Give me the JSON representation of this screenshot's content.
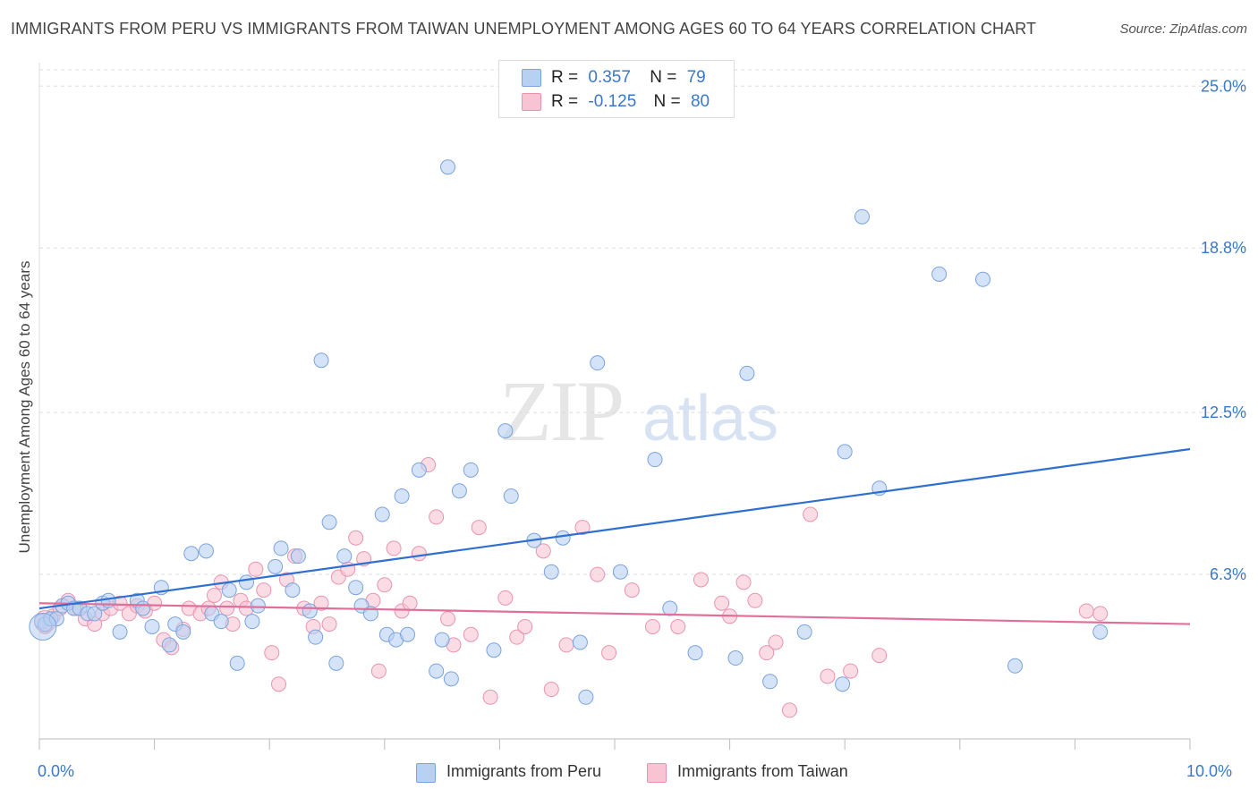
{
  "header": {
    "title": "IMMIGRANTS FROM PERU VS IMMIGRANTS FROM TAIWAN UNEMPLOYMENT AMONG AGES 60 TO 64 YEARS CORRELATION CHART",
    "source": "Source: ZipAtlas.com"
  },
  "legend": {
    "peru": {
      "r_label": "R =",
      "r_value": "0.357",
      "n_label": "N =",
      "n_value": "79",
      "name": "Immigrants from Peru"
    },
    "taiwan": {
      "r_label": "R =",
      "r_value": "-0.125",
      "n_label": "N =",
      "n_value": "80",
      "name": "Immigrants from Taiwan"
    }
  },
  "colors": {
    "peru_fill": "#b8d0f2",
    "peru_stroke": "#7aa3dd",
    "peru_line": "#2f6fcf",
    "taiwan_fill": "#f8c4d4",
    "taiwan_stroke": "#e894b0",
    "taiwan_line": "#e0709a",
    "tick_text": "#3a78c9",
    "grid": "#dddddd"
  },
  "watermark": {
    "zip": "ZIP",
    "atlas": "atlas"
  },
  "chart_data": {
    "type": "scatter",
    "title": "IMMIGRANTS FROM PERU VS IMMIGRANTS FROM TAIWAN UNEMPLOYMENT AMONG AGES 60 TO 64 YEARS CORRELATION CHART",
    "xlabel": "",
    "ylabel": "Unemployment Among Ages 60 to 64 years",
    "xlim": [
      0,
      10
    ],
    "ylim": [
      0,
      25.9
    ],
    "x_tick_labels": [
      "0.0%",
      "10.0%"
    ],
    "y_ticks": [
      6.3,
      12.5,
      18.8,
      25.0
    ],
    "y_tick_labels": [
      "6.3%",
      "12.5%",
      "18.8%",
      "25.0%"
    ],
    "grid": true,
    "series": [
      {
        "name": "Immigrants from Peru",
        "r": 0.357,
        "n": 79,
        "trend": {
          "x": [
            0,
            10
          ],
          "y": [
            5.0,
            11.1
          ]
        },
        "points": [
          [
            0.02,
            4.5
          ],
          [
            0.05,
            4.4
          ],
          [
            0.1,
            4.6
          ],
          [
            0.15,
            4.6
          ],
          [
            0.2,
            5.1
          ],
          [
            0.25,
            5.2
          ],
          [
            0.3,
            5.0
          ],
          [
            0.35,
            5.0
          ],
          [
            0.42,
            4.8
          ],
          [
            0.48,
            4.8
          ],
          [
            0.55,
            5.2
          ],
          [
            0.6,
            5.3
          ],
          [
            0.7,
            4.1
          ],
          [
            0.85,
            5.3
          ],
          [
            0.9,
            5.0
          ],
          [
            0.98,
            4.3
          ],
          [
            1.06,
            5.8
          ],
          [
            1.13,
            3.6
          ],
          [
            1.18,
            4.4
          ],
          [
            1.25,
            4.1
          ],
          [
            1.32,
            7.1
          ],
          [
            1.45,
            7.2
          ],
          [
            1.5,
            4.8
          ],
          [
            1.58,
            4.5
          ],
          [
            1.65,
            5.7
          ],
          [
            1.72,
            2.9
          ],
          [
            1.8,
            6.0
          ],
          [
            1.85,
            4.5
          ],
          [
            1.9,
            5.1
          ],
          [
            2.05,
            6.6
          ],
          [
            2.1,
            7.3
          ],
          [
            2.2,
            5.7
          ],
          [
            2.25,
            7.0
          ],
          [
            2.35,
            4.9
          ],
          [
            2.4,
            3.9
          ],
          [
            2.45,
            14.5
          ],
          [
            2.52,
            8.3
          ],
          [
            2.58,
            2.9
          ],
          [
            2.65,
            7.0
          ],
          [
            2.75,
            5.8
          ],
          [
            2.8,
            5.1
          ],
          [
            2.88,
            4.8
          ],
          [
            2.98,
            8.6
          ],
          [
            3.02,
            4.0
          ],
          [
            3.1,
            3.8
          ],
          [
            3.15,
            9.3
          ],
          [
            3.2,
            4.0
          ],
          [
            3.3,
            10.3
          ],
          [
            3.45,
            2.6
          ],
          [
            3.5,
            3.8
          ],
          [
            3.55,
            21.9
          ],
          [
            3.58,
            2.3
          ],
          [
            3.65,
            9.5
          ],
          [
            3.75,
            10.3
          ],
          [
            3.95,
            3.4
          ],
          [
            4.05,
            11.8
          ],
          [
            4.1,
            9.3
          ],
          [
            4.3,
            7.6
          ],
          [
            4.45,
            6.4
          ],
          [
            4.55,
            7.7
          ],
          [
            4.7,
            3.7
          ],
          [
            4.75,
            1.6
          ],
          [
            4.85,
            14.4
          ],
          [
            5.05,
            6.4
          ],
          [
            5.35,
            10.7
          ],
          [
            5.48,
            5.0
          ],
          [
            5.7,
            3.3
          ],
          [
            6.05,
            3.1
          ],
          [
            6.15,
            14.0
          ],
          [
            6.35,
            2.2
          ],
          [
            6.65,
            4.1
          ],
          [
            6.98,
            2.1
          ],
          [
            7.0,
            11.0
          ],
          [
            7.15,
            20.0
          ],
          [
            7.3,
            9.6
          ],
          [
            7.82,
            17.8
          ],
          [
            8.2,
            17.6
          ],
          [
            8.48,
            2.8
          ],
          [
            9.22,
            4.1
          ]
        ]
      },
      {
        "name": "Immigrants from Taiwan",
        "r": -0.125,
        "n": 80,
        "trend": {
          "x": [
            0,
            10
          ],
          "y": [
            5.2,
            4.4
          ]
        },
        "points": [
          [
            0.05,
            4.3
          ],
          [
            0.12,
            4.7
          ],
          [
            0.18,
            5.0
          ],
          [
            0.25,
            5.3
          ],
          [
            0.32,
            5.0
          ],
          [
            0.4,
            4.6
          ],
          [
            0.48,
            4.4
          ],
          [
            0.55,
            4.8
          ],
          [
            0.62,
            5.0
          ],
          [
            0.7,
            5.2
          ],
          [
            0.78,
            4.8
          ],
          [
            0.85,
            5.1
          ],
          [
            0.92,
            4.9
          ],
          [
            1.0,
            5.2
          ],
          [
            1.08,
            3.8
          ],
          [
            1.15,
            3.5
          ],
          [
            1.25,
            4.2
          ],
          [
            1.3,
            5.0
          ],
          [
            1.4,
            4.8
          ],
          [
            1.47,
            5.0
          ],
          [
            1.52,
            5.5
          ],
          [
            1.58,
            6.0
          ],
          [
            1.63,
            5.0
          ],
          [
            1.68,
            4.4
          ],
          [
            1.75,
            5.3
          ],
          [
            1.8,
            5.0
          ],
          [
            1.88,
            6.5
          ],
          [
            1.95,
            5.7
          ],
          [
            2.02,
            3.3
          ],
          [
            2.08,
            2.1
          ],
          [
            2.15,
            6.1
          ],
          [
            2.22,
            7.0
          ],
          [
            2.3,
            5.0
          ],
          [
            2.38,
            4.3
          ],
          [
            2.45,
            5.2
          ],
          [
            2.52,
            4.4
          ],
          [
            2.6,
            6.2
          ],
          [
            2.68,
            6.5
          ],
          [
            2.75,
            7.7
          ],
          [
            2.82,
            6.9
          ],
          [
            2.9,
            5.3
          ],
          [
            2.95,
            2.6
          ],
          [
            3.0,
            5.9
          ],
          [
            3.08,
            7.3
          ],
          [
            3.15,
            4.9
          ],
          [
            3.22,
            5.2
          ],
          [
            3.3,
            7.1
          ],
          [
            3.38,
            10.5
          ],
          [
            3.45,
            8.5
          ],
          [
            3.55,
            4.6
          ],
          [
            3.6,
            3.6
          ],
          [
            3.75,
            4.0
          ],
          [
            3.82,
            8.1
          ],
          [
            3.92,
            1.6
          ],
          [
            4.05,
            5.4
          ],
          [
            4.15,
            3.9
          ],
          [
            4.22,
            4.3
          ],
          [
            4.38,
            7.2
          ],
          [
            4.45,
            1.9
          ],
          [
            4.58,
            3.6
          ],
          [
            4.72,
            8.1
          ],
          [
            4.85,
            6.3
          ],
          [
            4.95,
            3.3
          ],
          [
            5.15,
            5.7
          ],
          [
            5.33,
            4.3
          ],
          [
            5.55,
            4.3
          ],
          [
            5.75,
            6.1
          ],
          [
            5.93,
            5.2
          ],
          [
            6.0,
            4.7
          ],
          [
            6.12,
            6.0
          ],
          [
            6.22,
            5.3
          ],
          [
            6.32,
            3.3
          ],
          [
            6.4,
            3.7
          ],
          [
            6.52,
            1.1
          ],
          [
            6.7,
            8.6
          ],
          [
            6.85,
            2.4
          ],
          [
            7.05,
            2.6
          ],
          [
            7.3,
            3.2
          ],
          [
            9.1,
            4.9
          ],
          [
            9.22,
            4.8
          ]
        ]
      }
    ]
  }
}
